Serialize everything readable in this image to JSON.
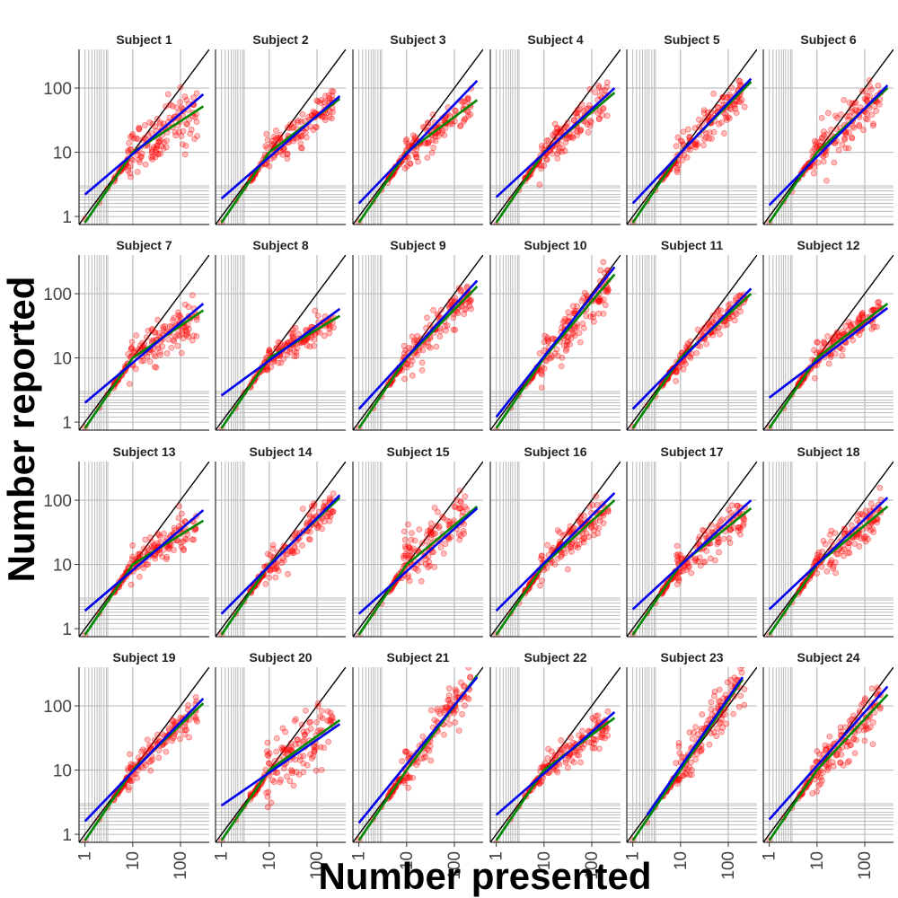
{
  "chart_data": {
    "type": "scatter",
    "layout": "facet-grid",
    "xlabel": "Number presented",
    "ylabel": "Number reported",
    "x_scale": "log10",
    "y_scale": "log10",
    "xlim": [
      0.75,
      400
    ],
    "ylim": [
      0.75,
      400
    ],
    "x_ticks": [
      1,
      10,
      100
    ],
    "x_tick_labels": [
      "1",
      "10",
      "100"
    ],
    "y_ticks": [
      1,
      10,
      100
    ],
    "y_tick_labels": [
      "1",
      "10",
      "100"
    ],
    "grid": true,
    "colors": {
      "points": "#ff0000",
      "identity_line": "#000000",
      "blue_fit": "#0000ee",
      "green_fit": "#008800",
      "grid": "#bbbbbb"
    },
    "reference_line": "y = x",
    "facets": [
      {
        "title": "Subject 1",
        "blue": [
          [
            1,
            2.2
          ],
          [
            300,
            80
          ]
        ],
        "green": [
          [
            1,
            0.8
          ],
          [
            10,
            10
          ],
          [
            300,
            52
          ]
        ],
        "spread": 0.22
      },
      {
        "title": "Subject 2",
        "blue": [
          [
            1,
            1.9
          ],
          [
            300,
            75
          ]
        ],
        "green": [
          [
            1,
            0.8
          ],
          [
            10,
            10
          ],
          [
            300,
            68
          ]
        ],
        "spread": 0.15
      },
      {
        "title": "Subject 3",
        "blue": [
          [
            1,
            1.6
          ],
          [
            300,
            130
          ]
        ],
        "green": [
          [
            1,
            0.8
          ],
          [
            10,
            10
          ],
          [
            300,
            65
          ]
        ],
        "spread": 0.12
      },
      {
        "title": "Subject 4",
        "blue": [
          [
            1,
            2.0
          ],
          [
            300,
            100
          ]
        ],
        "green": [
          [
            1,
            0.8
          ],
          [
            10,
            10
          ],
          [
            300,
            85
          ]
        ],
        "spread": 0.14
      },
      {
        "title": "Subject 5",
        "blue": [
          [
            1,
            1.6
          ],
          [
            300,
            140
          ]
        ],
        "green": [
          [
            1,
            0.8
          ],
          [
            10,
            10
          ],
          [
            300,
            125
          ]
        ],
        "spread": 0.14
      },
      {
        "title": "Subject 6",
        "blue": [
          [
            1,
            1.5
          ],
          [
            300,
            110
          ]
        ],
        "green": [
          [
            1,
            0.8
          ],
          [
            10,
            10
          ],
          [
            300,
            100
          ]
        ],
        "spread": 0.15
      },
      {
        "title": "Subject 7",
        "blue": [
          [
            1,
            2.0
          ],
          [
            300,
            70
          ]
        ],
        "green": [
          [
            1,
            0.8
          ],
          [
            10,
            10
          ],
          [
            300,
            55
          ]
        ],
        "spread": 0.16
      },
      {
        "title": "Subject 8",
        "blue": [
          [
            1,
            2.6
          ],
          [
            300,
            58
          ]
        ],
        "green": [
          [
            1,
            0.8
          ],
          [
            10,
            10
          ],
          [
            300,
            45
          ]
        ],
        "spread": 0.1
      },
      {
        "title": "Subject 9",
        "blue": [
          [
            1,
            1.6
          ],
          [
            300,
            160
          ]
        ],
        "green": [
          [
            1,
            0.8
          ],
          [
            10,
            10
          ],
          [
            300,
            130
          ]
        ],
        "spread": 0.14
      },
      {
        "title": "Subject 10",
        "blue": [
          [
            1,
            1.2
          ],
          [
            300,
            260
          ]
        ],
        "green": [
          [
            1,
            0.8
          ],
          [
            10,
            10
          ],
          [
            300,
            200
          ]
        ],
        "spread": 0.2
      },
      {
        "title": "Subject 11",
        "blue": [
          [
            1,
            1.6
          ],
          [
            300,
            120
          ]
        ],
        "green": [
          [
            1,
            0.8
          ],
          [
            10,
            10
          ],
          [
            300,
            100
          ]
        ],
        "spread": 0.12
      },
      {
        "title": "Subject 12",
        "blue": [
          [
            1,
            2.4
          ],
          [
            300,
            60
          ]
        ],
        "green": [
          [
            1,
            0.8
          ],
          [
            10,
            10
          ],
          [
            300,
            70
          ]
        ],
        "spread": 0.1
      },
      {
        "title": "Subject 13",
        "blue": [
          [
            1,
            1.9
          ],
          [
            300,
            70
          ]
        ],
        "green": [
          [
            1,
            0.8
          ],
          [
            10,
            10
          ],
          [
            300,
            48
          ]
        ],
        "spread": 0.12
      },
      {
        "title": "Subject 14",
        "blue": [
          [
            1,
            1.7
          ],
          [
            300,
            120
          ]
        ],
        "green": [
          [
            1,
            0.8
          ],
          [
            10,
            10
          ],
          [
            300,
            110
          ]
        ],
        "spread": 0.14
      },
      {
        "title": "Subject 15",
        "blue": [
          [
            1,
            1.7
          ],
          [
            300,
            75
          ]
        ],
        "green": [
          [
            1,
            0.8
          ],
          [
            10,
            10
          ],
          [
            300,
            80
          ]
        ],
        "spread": 0.22
      },
      {
        "title": "Subject 16",
        "blue": [
          [
            1,
            1.9
          ],
          [
            300,
            130
          ]
        ],
        "green": [
          [
            1,
            0.8
          ],
          [
            10,
            10
          ],
          [
            300,
            100
          ]
        ],
        "spread": 0.14
      },
      {
        "title": "Subject 17",
        "blue": [
          [
            1,
            2.0
          ],
          [
            300,
            100
          ]
        ],
        "green": [
          [
            1,
            0.8
          ],
          [
            10,
            10
          ],
          [
            300,
            75
          ]
        ],
        "spread": 0.14
      },
      {
        "title": "Subject 18",
        "blue": [
          [
            1,
            2.0
          ],
          [
            300,
            110
          ]
        ],
        "green": [
          [
            1,
            0.8
          ],
          [
            10,
            10
          ],
          [
            300,
            80
          ]
        ],
        "spread": 0.14
      },
      {
        "title": "Subject 19",
        "blue": [
          [
            1,
            1.6
          ],
          [
            300,
            130
          ]
        ],
        "green": [
          [
            1,
            0.8
          ],
          [
            10,
            10
          ],
          [
            300,
            110
          ]
        ],
        "spread": 0.12
      },
      {
        "title": "Subject 20",
        "blue": [
          [
            1,
            2.8
          ],
          [
            300,
            52
          ]
        ],
        "green": [
          [
            1,
            0.8
          ],
          [
            10,
            10
          ],
          [
            300,
            60
          ]
        ],
        "spread": 0.25
      },
      {
        "title": "Subject 21",
        "blue": [
          [
            1,
            1.5
          ],
          [
            300,
            280
          ]
        ],
        "green": [
          [
            1,
            0.8
          ],
          [
            10,
            10
          ],
          [
            300,
            300
          ]
        ],
        "spread": 0.16
      },
      {
        "title": "Subject 22",
        "blue": [
          [
            1,
            2.0
          ],
          [
            300,
            80
          ]
        ],
        "green": [
          [
            1,
            0.8
          ],
          [
            10,
            10
          ],
          [
            300,
            65
          ]
        ],
        "spread": 0.12
      },
      {
        "title": "Subject 23",
        "blue": [
          [
            2,
            2.0
          ],
          [
            200,
            280
          ]
        ],
        "green": [
          [
            1,
            0.8
          ],
          [
            10,
            10
          ],
          [
            200,
            260
          ]
        ],
        "spread": 0.18
      },
      {
        "title": "Subject 24",
        "blue": [
          [
            1,
            1.7
          ],
          [
            300,
            200
          ]
        ],
        "green": [
          [
            1,
            0.8
          ],
          [
            10,
            10
          ],
          [
            300,
            150
          ]
        ],
        "spread": 0.17
      }
    ]
  }
}
